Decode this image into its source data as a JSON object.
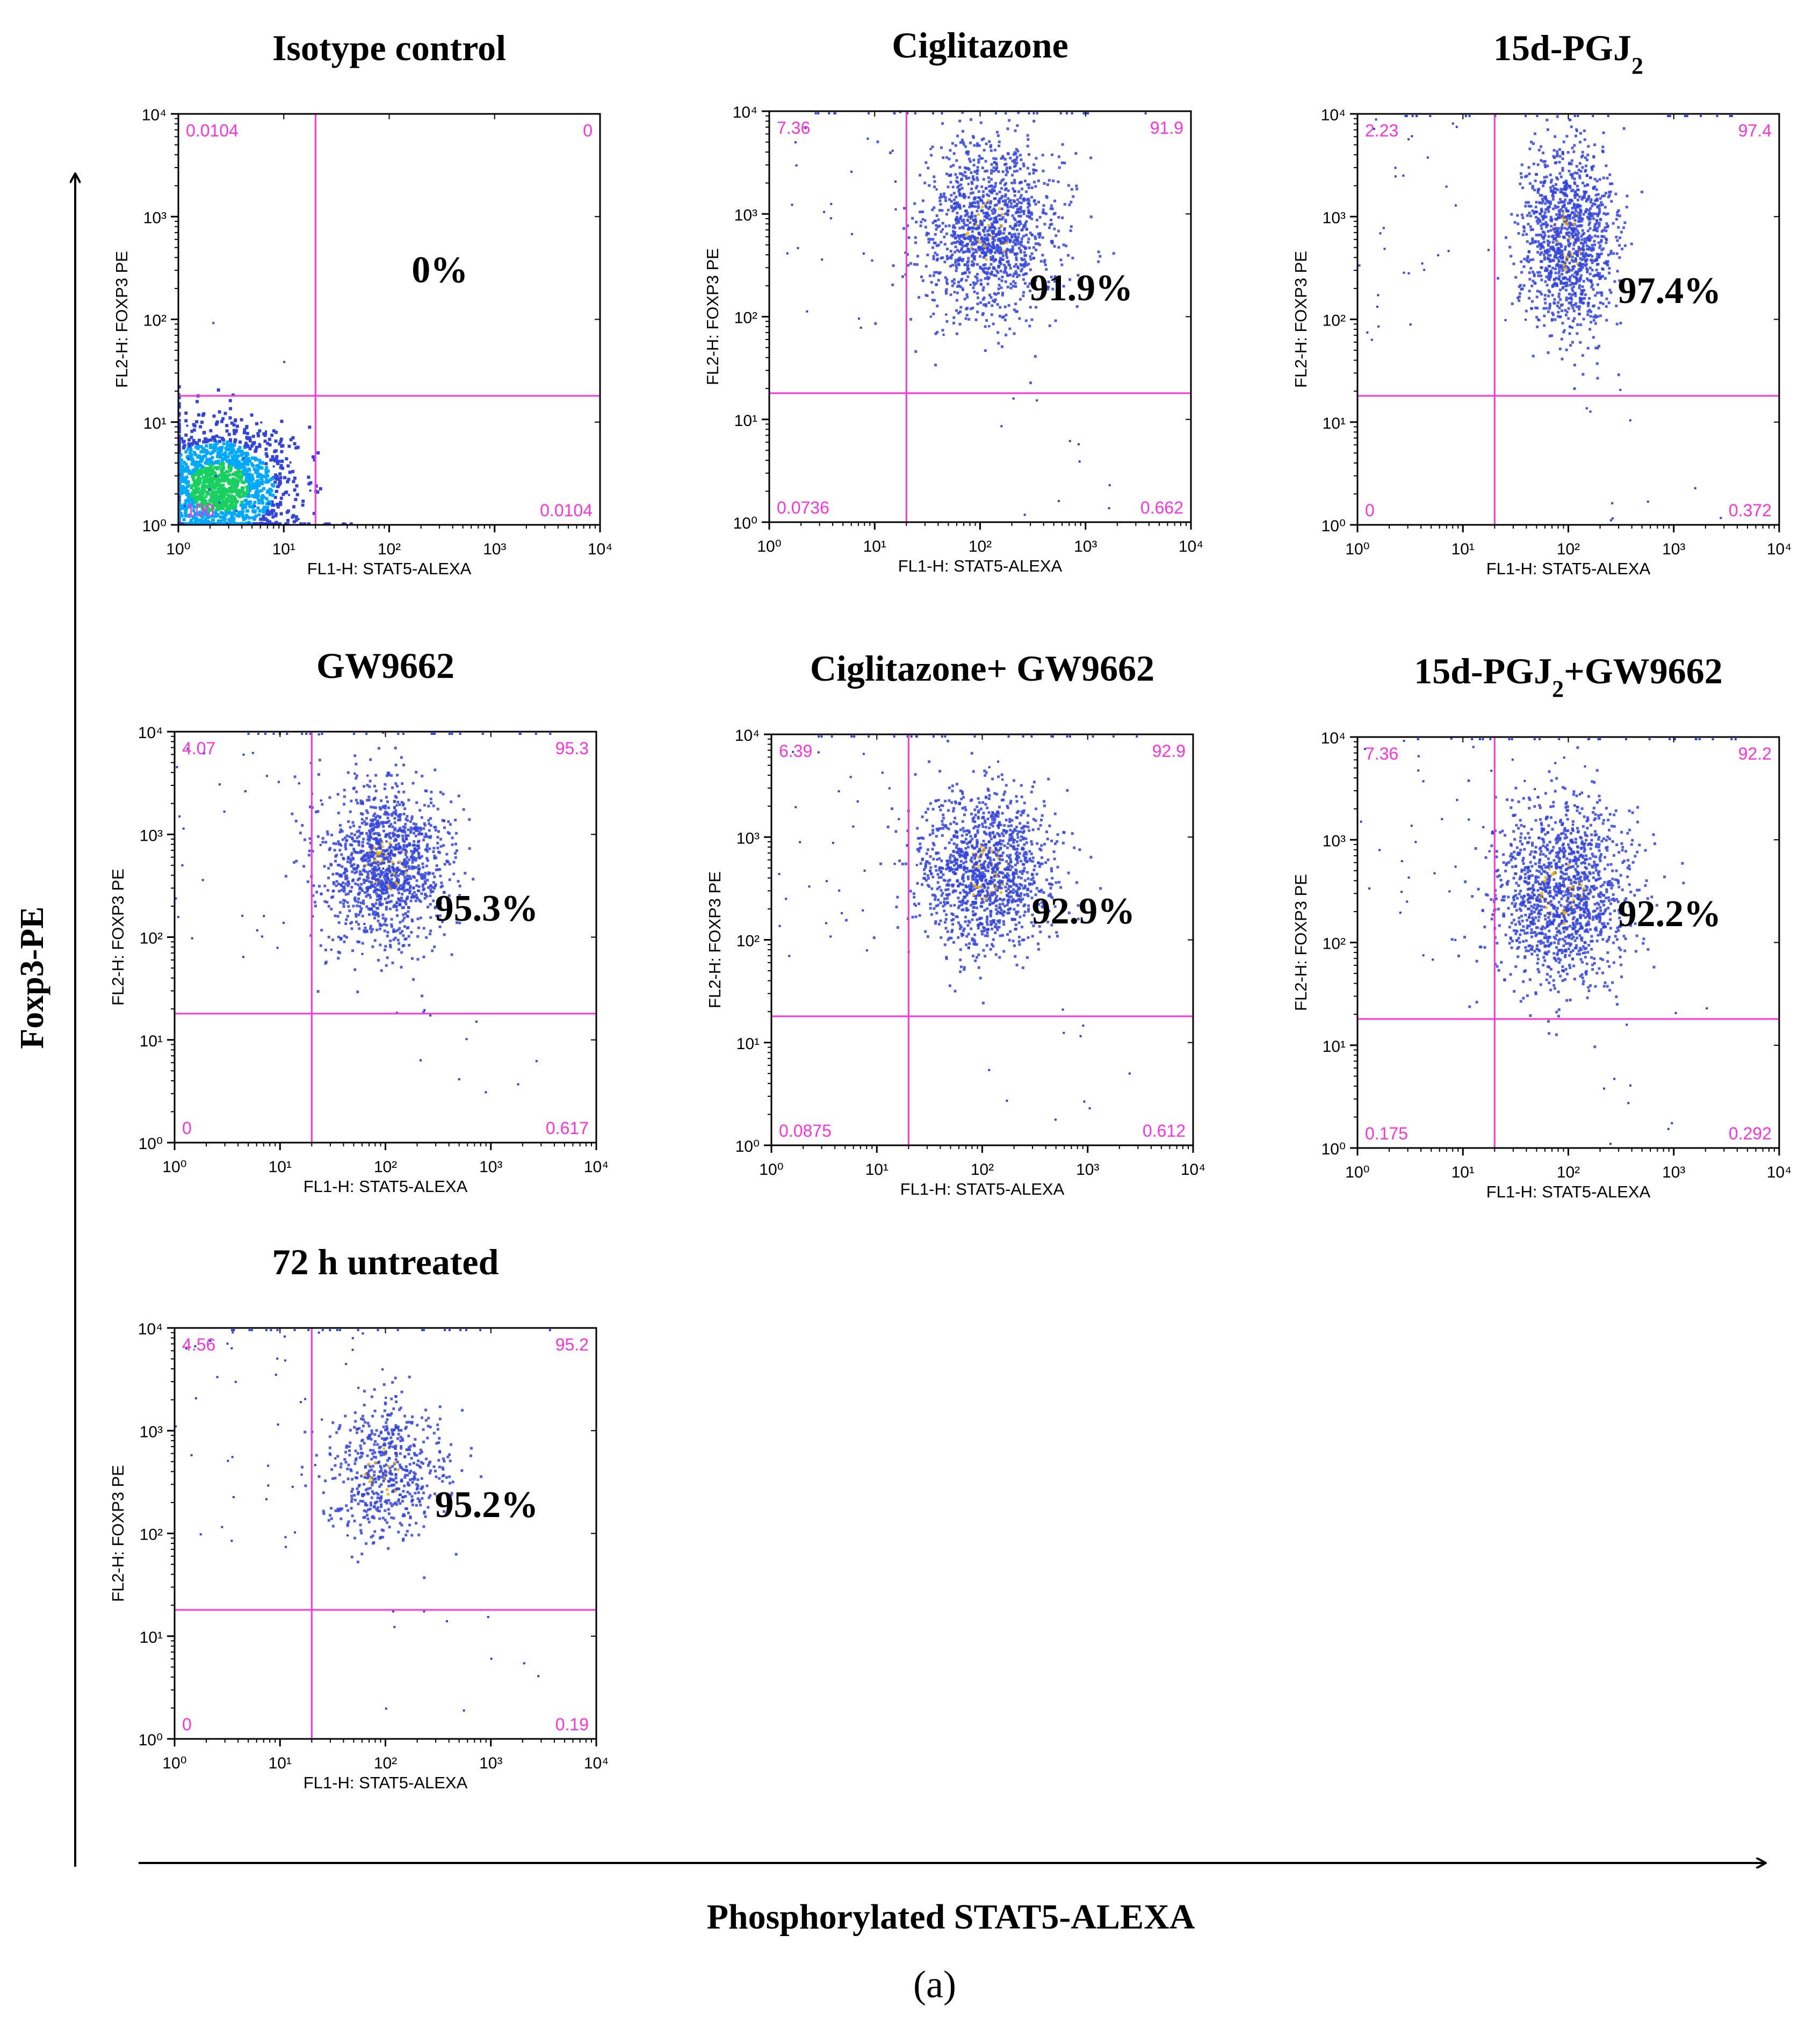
{
  "figure": {
    "y_axis_label": "Foxp3-PE",
    "x_axis_label": "Phosphorylated STAT5-ALEXA",
    "panel_caption": "(a)"
  },
  "colors": {
    "gate": "#ff33dd",
    "quadrant_text": "#ff33dd",
    "dots": "#3344dd",
    "dots_dense": "#f0b000",
    "density_high": "#18d060",
    "density_mid": "#00a8ff",
    "axis": "#000000"
  },
  "chart_data": [
    {
      "type": "scatter",
      "title": "Isotype control",
      "xlabel": "FL1-H: STAT5-ALEXA",
      "ylabel": "FL2-H: FOXP3 PE",
      "xscale": "log",
      "yscale": "log",
      "xlim": [
        1,
        10000
      ],
      "ylim": [
        1,
        10000
      ],
      "x_ticks": [
        "10⁰",
        "10¹",
        "10²",
        "10³",
        "10⁴"
      ],
      "y_ticks": [
        "10⁰",
        "10¹",
        "10²",
        "10³",
        "10⁴"
      ],
      "gate": {
        "x": 20,
        "y": 18
      },
      "quadrants": {
        "UL": "0.0104",
        "UR": "0",
        "LL": "100",
        "LR": "0.0104"
      },
      "highlight": "0%",
      "population": {
        "center": [
          2.4,
          2.3
        ],
        "spread": [
          0.35,
          0.3
        ],
        "n": 1800,
        "style": "density"
      }
    },
    {
      "type": "scatter",
      "title": "Ciglitazone",
      "xlabel": "FL1-H: STAT5-ALEXA",
      "ylabel": "FL2-H: FOXP3 PE",
      "xscale": "log",
      "yscale": "log",
      "xlim": [
        1,
        10000
      ],
      "ylim": [
        1,
        10000
      ],
      "x_ticks": [
        "10⁰",
        "10¹",
        "10²",
        "10³",
        "10⁴"
      ],
      "y_ticks": [
        "10⁰",
        "10¹",
        "10²",
        "10³",
        "10⁴"
      ],
      "gate": {
        "x": 20,
        "y": 18
      },
      "quadrants": {
        "UL": "7.36",
        "UR": "91.9",
        "LL": "0.0736",
        "LR": "0.662"
      },
      "highlight": "91.9%",
      "population": {
        "center": [
          120,
          700
        ],
        "spread": [
          0.32,
          0.42
        ],
        "n": 1300,
        "style": "dots"
      }
    },
    {
      "type": "scatter",
      "title": "15d-PGJ",
      "title_sub": "2",
      "xlabel": "FL1-H: STAT5-ALEXA",
      "ylabel": "FL2-H: FOXP3 PE",
      "xscale": "log",
      "yscale": "log",
      "xlim": [
        1,
        10000
      ],
      "ylim": [
        1,
        10000
      ],
      "x_ticks": [
        "10⁰",
        "10¹",
        "10²",
        "10³",
        "10⁴"
      ],
      "y_ticks": [
        "10⁰",
        "10¹",
        "10²",
        "10³",
        "10⁴"
      ],
      "gate": {
        "x": 20,
        "y": 18
      },
      "quadrants": {
        "UL": "2.23",
        "UR": "97.4",
        "LL": "0",
        "LR": "0.372"
      },
      "highlight": "97.4%",
      "population": {
        "center": [
          100,
          600
        ],
        "spread": [
          0.22,
          0.45
        ],
        "n": 1200,
        "style": "dots"
      }
    },
    {
      "type": "scatter",
      "title": "GW9662",
      "xlabel": "FL1-H: STAT5-ALEXA",
      "ylabel": "FL2-H: FOXP3 PE",
      "xscale": "log",
      "yscale": "log",
      "xlim": [
        1,
        10000
      ],
      "ylim": [
        1,
        10000
      ],
      "x_ticks": [
        "10⁰",
        "10¹",
        "10²",
        "10³",
        "10⁴"
      ],
      "y_ticks": [
        "10⁰",
        "10¹",
        "10²",
        "10³",
        "10⁴"
      ],
      "gate": {
        "x": 20,
        "y": 18
      },
      "quadrants": {
        "UL": "4.07",
        "UR": "95.3",
        "LL": "0",
        "LR": "0.617"
      },
      "highlight": "95.3%",
      "population": {
        "center": [
          100,
          500
        ],
        "spread": [
          0.3,
          0.4
        ],
        "n": 1300,
        "style": "dots"
      }
    },
    {
      "type": "scatter",
      "title": "Ciglitazone+ GW9662",
      "xlabel": "FL1-H: STAT5-ALEXA",
      "ylabel": "FL2-H: FOXP3 PE",
      "xscale": "log",
      "yscale": "log",
      "xlim": [
        1,
        10000
      ],
      "ylim": [
        1,
        10000
      ],
      "x_ticks": [
        "10⁰",
        "10¹",
        "10²",
        "10³",
        "10⁴"
      ],
      "y_ticks": [
        "10⁰",
        "10¹",
        "10²",
        "10³",
        "10⁴"
      ],
      "gate": {
        "x": 20,
        "y": 18
      },
      "quadrants": {
        "UL": "6.39",
        "UR": "92.9",
        "LL": "0.0875",
        "LR": "0.612"
      },
      "highlight": "92.9%",
      "population": {
        "center": [
          110,
          450
        ],
        "spread": [
          0.32,
          0.38
        ],
        "n": 1300,
        "style": "dots"
      }
    },
    {
      "type": "scatter",
      "title": "15d-PGJ",
      "title_sub": "2",
      "title_suffix": "+GW9662",
      "xlabel": "FL1-H: STAT5-ALEXA",
      "ylabel": "FL2-H: FOXP3 PE",
      "xscale": "log",
      "yscale": "log",
      "xlim": [
        1,
        10000
      ],
      "ylim": [
        1,
        10000
      ],
      "x_ticks": [
        "10⁰",
        "10¹",
        "10²",
        "10³",
        "10⁴"
      ],
      "y_ticks": [
        "10⁰",
        "10¹",
        "10²",
        "10³",
        "10⁴"
      ],
      "gate": {
        "x": 20,
        "y": 18
      },
      "quadrants": {
        "UL": "7.36",
        "UR": "92.2",
        "LL": "0.175",
        "LR": "0.292"
      },
      "highlight": "92.2%",
      "population": {
        "center": [
          90,
          300
        ],
        "spread": [
          0.32,
          0.45
        ],
        "n": 1400,
        "style": "dots"
      }
    },
    {
      "type": "scatter",
      "title": "72 h untreated",
      "xlabel": "FL1-H: STAT5-ALEXA",
      "ylabel": "FL2-H: FOXP3 PE",
      "xscale": "log",
      "yscale": "log",
      "xlim": [
        1,
        10000
      ],
      "ylim": [
        1,
        10000
      ],
      "x_ticks": [
        "10⁰",
        "10¹",
        "10²",
        "10³",
        "10⁴"
      ],
      "y_ticks": [
        "10⁰",
        "10¹",
        "10²",
        "10³",
        "10⁴"
      ],
      "gate": {
        "x": 20,
        "y": 18
      },
      "quadrants": {
        "UL": "4.56",
        "UR": "95.2",
        "LL": "0",
        "LR": "0.19"
      },
      "highlight": "95.2%",
      "population": {
        "center": [
          100,
          400
        ],
        "spread": [
          0.28,
          0.35
        ],
        "n": 600,
        "style": "dots"
      }
    }
  ]
}
